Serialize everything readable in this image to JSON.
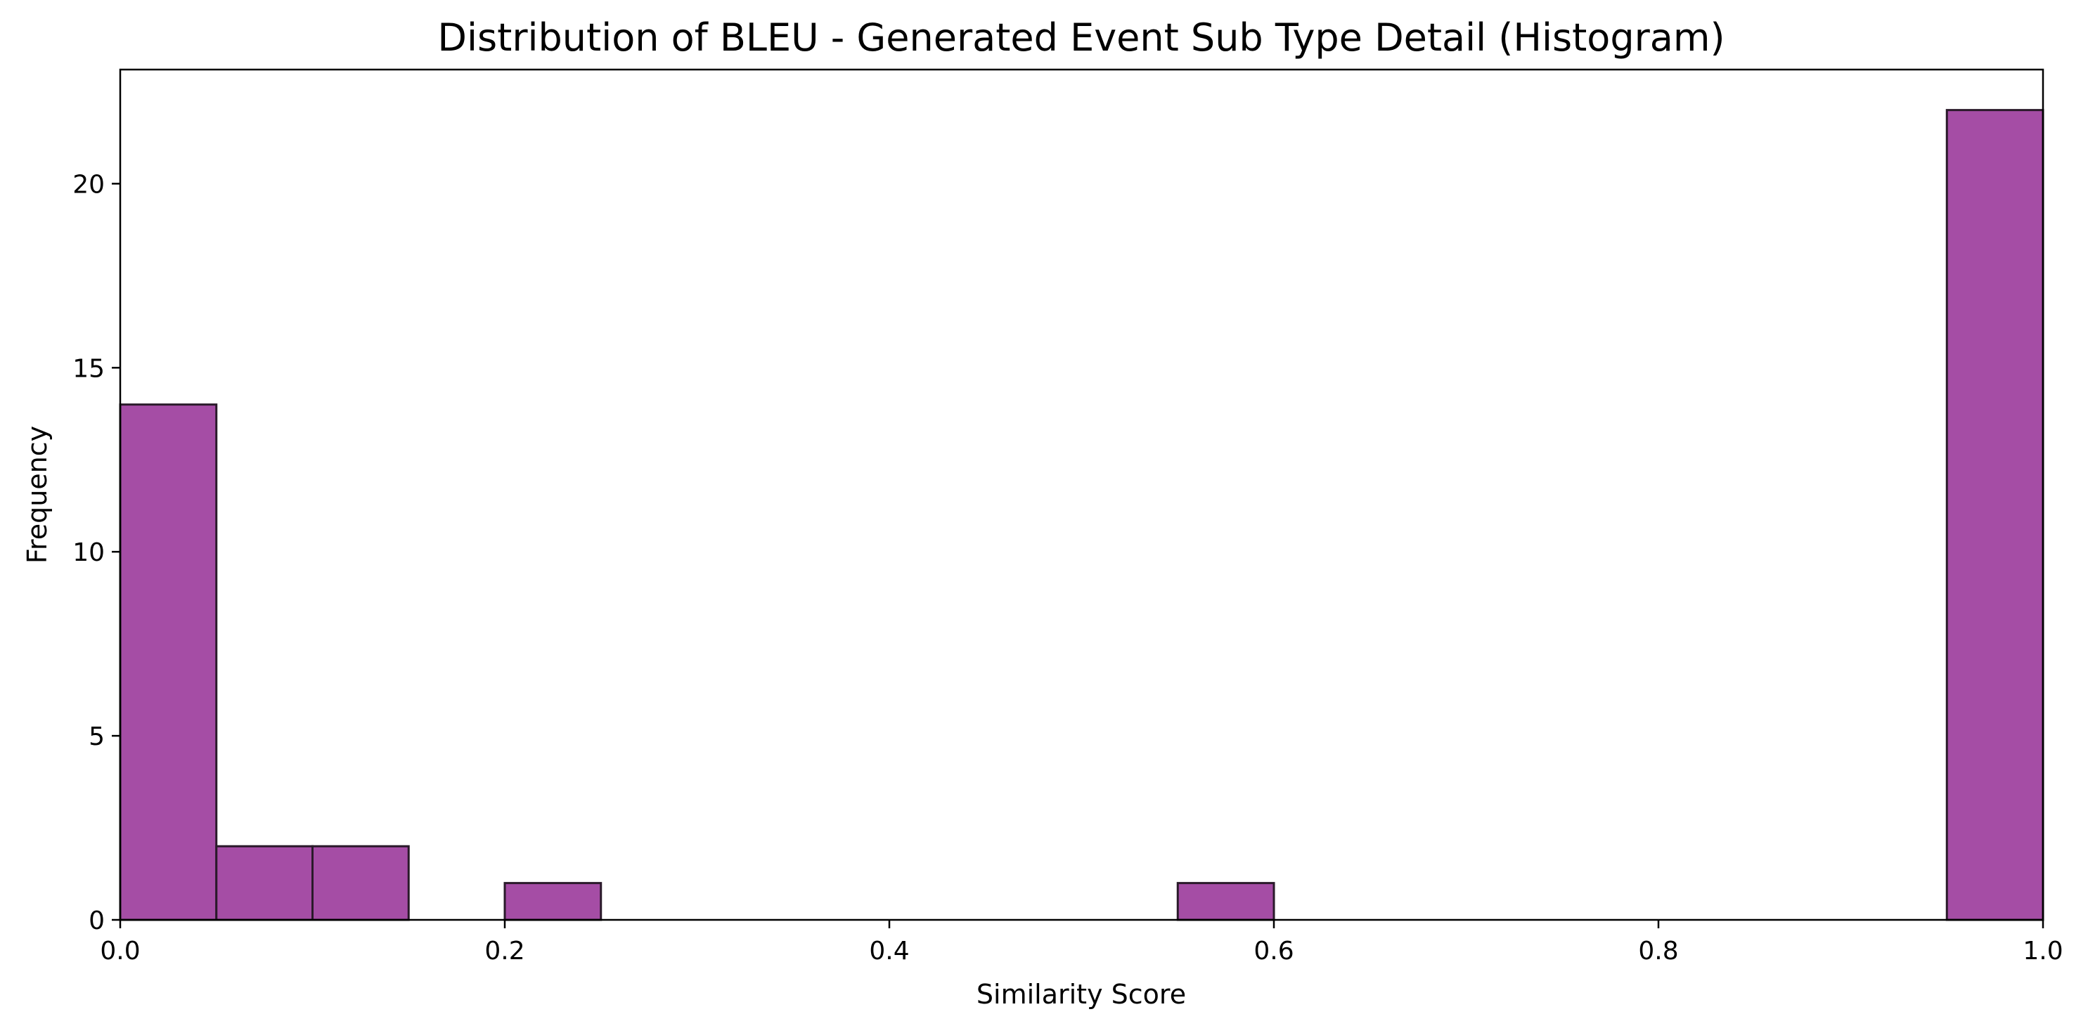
{
  "chart_data": {
    "type": "bar",
    "title": "Distribution of BLEU - Generated Event Sub Type Detail (Histogram)",
    "xlabel": "Similarity Score",
    "ylabel": "Frequency",
    "xlim": [
      0.0,
      1.0
    ],
    "ylim": [
      0,
      23.1
    ],
    "x_ticks": [
      0.0,
      0.2,
      0.4,
      0.6,
      0.8,
      1.0
    ],
    "x_tick_labels": [
      "0.0",
      "0.2",
      "0.4",
      "0.6",
      "0.8",
      "1.0"
    ],
    "y_ticks": [
      0,
      5,
      10,
      15,
      20
    ],
    "y_tick_labels": [
      "0",
      "5",
      "10",
      "15",
      "20"
    ],
    "bin_edges": [
      0.0,
      0.05,
      0.1,
      0.15,
      0.2,
      0.25,
      0.3,
      0.35,
      0.4,
      0.45,
      0.5,
      0.55,
      0.6,
      0.65,
      0.7,
      0.75,
      0.8,
      0.85,
      0.9,
      0.95,
      1.0
    ],
    "values": [
      14,
      2,
      2,
      0,
      1,
      0,
      0,
      0,
      0,
      0,
      0,
      1,
      0,
      0,
      0,
      0,
      0,
      0,
      0,
      22
    ],
    "bar_color": "#9b3a9b",
    "edge_color": "#2a1a2a",
    "grid": false,
    "legend": "none"
  }
}
